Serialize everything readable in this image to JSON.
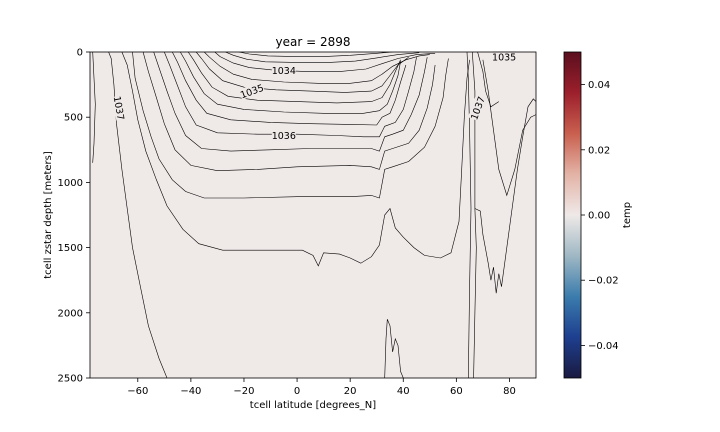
{
  "chart_data": {
    "type": "contour",
    "title": "year = 2898",
    "xlabel": "tcell latitude [degrees_N]",
    "ylabel": "tcell zstar depth [meters]",
    "xlim": [
      -78,
      90
    ],
    "ylim": [
      2500,
      0
    ],
    "y_inverted": true,
    "xticks": [
      -60,
      -40,
      -20,
      0,
      20,
      40,
      60,
      80
    ],
    "yticks": [
      0,
      500,
      1000,
      1500,
      2000,
      2500
    ],
    "fill_value": 0.0,
    "fill_color": "#efe9e8",
    "colorbar": {
      "label": "temp",
      "range": [
        -0.05,
        0.05
      ],
      "ticks": [
        0.04,
        0.02,
        0.0,
        -0.02,
        -0.04
      ],
      "tick_labels": [
        "0.04",
        "0.02",
        "0.00",
        "−0.02",
        "−0.04"
      ],
      "colors": [
        "#5b0f1e",
        "#9c1f2c",
        "#c9604f",
        "#e3b3a6",
        "#efe9e8",
        "#9fb8c4",
        "#3b7cad",
        "#1e3f8f",
        "#1a1a40"
      ]
    },
    "contour_labels": [
      {
        "text": "1034",
        "x": -5,
        "y": 140,
        "angle": 0
      },
      {
        "text": "1035",
        "x": -17,
        "y": 300,
        "angle": -20
      },
      {
        "text": "1036",
        "x": -5,
        "y": 640,
        "angle": 0
      },
      {
        "text": "1037",
        "x": -67,
        "y": 430,
        "angle": 80
      },
      {
        "text": "1037",
        "x": 68,
        "y": 430,
        "angle": -70
      },
      {
        "text": "1035",
        "x": 78,
        "y": 40,
        "angle": 0
      }
    ],
    "contours": [
      {
        "level": "1037",
        "points": [
          [
            -71,
            0
          ],
          [
            -70,
            50
          ],
          [
            -69,
            250
          ],
          [
            -68,
            550
          ],
          [
            -66,
            900
          ],
          [
            -64,
            1200
          ],
          [
            -62,
            1500
          ],
          [
            -59,
            1800
          ],
          [
            -56,
            2100
          ],
          [
            -52,
            2350
          ],
          [
            -49,
            2500
          ]
        ]
      },
      {
        "level": "1037",
        "points": [
          [
            -66,
            0
          ],
          [
            -64,
            100
          ],
          [
            -62,
            300
          ],
          [
            -60,
            520
          ],
          [
            -57,
            760
          ],
          [
            -53,
            980
          ],
          [
            -49,
            1180
          ],
          [
            -43,
            1360
          ],
          [
            -37,
            1470
          ],
          [
            -28,
            1520
          ],
          [
            -10,
            1520
          ],
          [
            2,
            1520
          ],
          [
            6,
            1560
          ],
          [
            8,
            1640
          ],
          [
            10,
            1540
          ],
          [
            16,
            1550
          ],
          [
            20,
            1580
          ],
          [
            24,
            1620
          ],
          [
            28,
            1570
          ],
          [
            31,
            1480
          ],
          [
            33,
            1250
          ],
          [
            35,
            1200
          ],
          [
            37,
            1350
          ],
          [
            40,
            1420
          ],
          [
            44,
            1500
          ],
          [
            48,
            1560
          ],
          [
            54,
            1580
          ],
          [
            58,
            1540
          ],
          [
            61,
            1300
          ],
          [
            62,
            900
          ],
          [
            63,
            500
          ],
          [
            64,
            200
          ],
          [
            65,
            60
          ]
        ]
      },
      {
        "level": "1036.8",
        "points": [
          [
            -62,
            0
          ],
          [
            -61,
            200
          ],
          [
            -58,
            450
          ],
          [
            -55,
            650
          ],
          [
            -52,
            820
          ],
          [
            -47,
            980
          ],
          [
            -42,
            1070
          ],
          [
            -35,
            1120
          ],
          [
            -20,
            1120
          ],
          [
            0,
            1110
          ],
          [
            20,
            1110
          ],
          [
            28,
            1100
          ],
          [
            31,
            1120
          ],
          [
            33,
            900
          ],
          [
            36,
            880
          ],
          [
            42,
            840
          ],
          [
            48,
            730
          ],
          [
            52,
            570
          ],
          [
            55,
            350
          ],
          [
            56,
            180
          ],
          [
            57,
            50
          ]
        ]
      },
      {
        "level": "1036.6",
        "points": [
          [
            -58,
            0
          ],
          [
            -56,
            150
          ],
          [
            -53,
            350
          ],
          [
            -50,
            550
          ],
          [
            -46,
            750
          ],
          [
            -40,
            870
          ],
          [
            -30,
            910
          ],
          [
            -15,
            900
          ],
          [
            0,
            880
          ],
          [
            20,
            870
          ],
          [
            28,
            880
          ],
          [
            31,
            900
          ],
          [
            33,
            760
          ],
          [
            36,
            740
          ],
          [
            42,
            700
          ],
          [
            46,
            600
          ],
          [
            49,
            430
          ],
          [
            51,
            250
          ],
          [
            52,
            100
          ]
        ]
      },
      {
        "level": "1036.4",
        "points": [
          [
            -54,
            0
          ],
          [
            -52,
            120
          ],
          [
            -49,
            300
          ],
          [
            -46,
            470
          ],
          [
            -42,
            640
          ],
          [
            -36,
            740
          ],
          [
            -25,
            760
          ],
          [
            -10,
            750
          ],
          [
            5,
            740
          ],
          [
            20,
            740
          ],
          [
            28,
            740
          ],
          [
            31,
            760
          ],
          [
            33,
            650
          ],
          [
            36,
            630
          ],
          [
            40,
            600
          ],
          [
            43,
            480
          ],
          [
            46,
            330
          ],
          [
            48,
            150
          ],
          [
            49,
            40
          ]
        ]
      },
      {
        "level": "1036",
        "points": [
          [
            -50,
            0
          ],
          [
            -48,
            100
          ],
          [
            -45,
            260
          ],
          [
            -42,
            420
          ],
          [
            -38,
            560
          ],
          [
            -30,
            620
          ],
          [
            -15,
            630
          ],
          [
            0,
            630
          ],
          [
            15,
            640
          ],
          [
            25,
            650
          ],
          [
            31,
            650
          ],
          [
            33,
            570
          ],
          [
            37,
            540
          ],
          [
            40,
            440
          ],
          [
            42,
            300
          ],
          [
            44,
            150
          ],
          [
            45,
            40
          ]
        ]
      },
      {
        "level": "1035.8",
        "points": [
          [
            -47,
            0
          ],
          [
            -45,
            80
          ],
          [
            -42,
            220
          ],
          [
            -38,
            370
          ],
          [
            -34,
            470
          ],
          [
            -25,
            520
          ],
          [
            -10,
            540
          ],
          [
            5,
            550
          ],
          [
            20,
            555
          ],
          [
            30,
            560
          ],
          [
            32,
            500
          ],
          [
            35,
            470
          ],
          [
            37,
            370
          ],
          [
            39,
            230
          ],
          [
            41,
            100
          ]
        ]
      },
      {
        "level": "1035.6",
        "points": [
          [
            -44,
            0
          ],
          [
            -42,
            70
          ],
          [
            -39,
            190
          ],
          [
            -35,
            320
          ],
          [
            -30,
            400
          ],
          [
            -20,
            440
          ],
          [
            -5,
            460
          ],
          [
            10,
            470
          ],
          [
            25,
            470
          ],
          [
            31,
            450
          ],
          [
            34,
            400
          ],
          [
            36,
            300
          ],
          [
            38,
            180
          ],
          [
            39,
            70
          ]
        ]
      },
      {
        "level": "1035.4",
        "points": [
          [
            -41,
            0
          ],
          [
            -39,
            60
          ],
          [
            -36,
            160
          ],
          [
            -32,
            270
          ],
          [
            -26,
            340
          ],
          [
            -15,
            370
          ],
          [
            0,
            380
          ],
          [
            15,
            390
          ],
          [
            28,
            380
          ],
          [
            32,
            350
          ],
          [
            35,
            250
          ],
          [
            37,
            150
          ],
          [
            39,
            60
          ]
        ]
      },
      {
        "level": "1035.2",
        "points": [
          [
            -38,
            0
          ],
          [
            -36,
            50
          ],
          [
            -33,
            130
          ],
          [
            -28,
            220
          ],
          [
            -20,
            270
          ],
          [
            -8,
            290
          ],
          [
            5,
            300
          ],
          [
            18,
            310
          ],
          [
            28,
            300
          ],
          [
            32,
            260
          ],
          [
            35,
            180
          ],
          [
            38,
            100
          ],
          [
            42,
            40
          ]
        ]
      },
      {
        "level": "1035",
        "points": [
          [
            -35,
            0
          ],
          [
            -33,
            40
          ],
          [
            -29,
            110
          ],
          [
            -24,
            170
          ],
          [
            -17,
            210
          ],
          [
            -5,
            230
          ],
          [
            8,
            240
          ],
          [
            20,
            240
          ],
          [
            28,
            220
          ],
          [
            32,
            170
          ],
          [
            36,
            110
          ],
          [
            41,
            60
          ],
          [
            46,
            30
          ],
          [
            50,
            20
          ]
        ]
      },
      {
        "level": "1034.6",
        "points": [
          [
            -31,
            0
          ],
          [
            -29,
            35
          ],
          [
            -24,
            85
          ],
          [
            -18,
            120
          ],
          [
            -8,
            140
          ],
          [
            4,
            150
          ],
          [
            16,
            150
          ],
          [
            26,
            130
          ],
          [
            32,
            90
          ],
          [
            38,
            50
          ],
          [
            45,
            20
          ],
          [
            52,
            10
          ]
        ]
      },
      {
        "level": "1034.2",
        "points": [
          [
            -27,
            0
          ],
          [
            -24,
            25
          ],
          [
            -19,
            55
          ],
          [
            -12,
            75
          ],
          [
            0,
            80
          ],
          [
            12,
            80
          ],
          [
            22,
            70
          ],
          [
            30,
            45
          ],
          [
            38,
            20
          ],
          [
            46,
            5
          ]
        ]
      },
      {
        "level": "1034",
        "points": [
          [
            -22,
            0
          ],
          [
            -18,
            15
          ],
          [
            -11,
            30
          ],
          [
            0,
            35
          ],
          [
            10,
            35
          ],
          [
            20,
            25
          ],
          [
            30,
            10
          ],
          [
            36,
            0
          ]
        ]
      },
      {
        "level": "1037-north",
        "points": [
          [
            64,
            0
          ],
          [
            64.5,
            200
          ],
          [
            65,
            600
          ],
          [
            65.5,
            1200
          ],
          [
            65,
            1800
          ],
          [
            64.5,
            2500
          ]
        ]
      },
      {
        "level": "1037-north2",
        "points": [
          [
            66,
            0
          ],
          [
            67,
            300
          ],
          [
            67,
            800
          ],
          [
            67,
            1200
          ],
          [
            67.5,
            1500
          ],
          [
            67,
            2000
          ],
          [
            66.5,
            2500
          ]
        ]
      },
      {
        "level": "1036.8-north",
        "points": [
          [
            68,
            0
          ],
          [
            70,
            150
          ],
          [
            71,
            300
          ],
          [
            73,
            420
          ],
          [
            76,
            380
          ]
        ]
      },
      {
        "level": "1037-south",
        "points": [
          [
            -77,
            0
          ],
          [
            -76.5,
            200
          ],
          [
            -76,
            400
          ],
          [
            -76.5,
            700
          ],
          [
            -77,
            850
          ]
        ]
      },
      {
        "level": "1037.2-north",
        "points": [
          [
            67,
            1200
          ],
          [
            69,
            1220
          ],
          [
            70,
            1400
          ],
          [
            72,
            1620
          ],
          [
            73,
            1750
          ],
          [
            74,
            1650
          ],
          [
            75,
            1850
          ],
          [
            76,
            1700
          ],
          [
            77,
            1800
          ],
          [
            79,
            1500
          ],
          [
            81,
            1200
          ],
          [
            83,
            900
          ],
          [
            85,
            650
          ],
          [
            87,
            420
          ],
          [
            89,
            360
          ],
          [
            90,
            380
          ]
        ]
      },
      {
        "level": "1037-arctic",
        "points": [
          [
            70,
            60
          ],
          [
            72,
            300
          ],
          [
            74,
            600
          ],
          [
            76,
            900
          ],
          [
            79,
            1100
          ],
          [
            82,
            900
          ],
          [
            85,
            600
          ],
          [
            88,
            500
          ],
          [
            90,
            480
          ]
        ]
      },
      {
        "level": "1037.1-deep",
        "points": [
          [
            33,
            2500
          ],
          [
            33.5,
            2200
          ],
          [
            34,
            2050
          ],
          [
            35,
            2100
          ],
          [
            36,
            2300
          ],
          [
            37,
            2200
          ],
          [
            38,
            2250
          ],
          [
            39,
            2450
          ],
          [
            40,
            2500
          ]
        ]
      }
    ]
  }
}
